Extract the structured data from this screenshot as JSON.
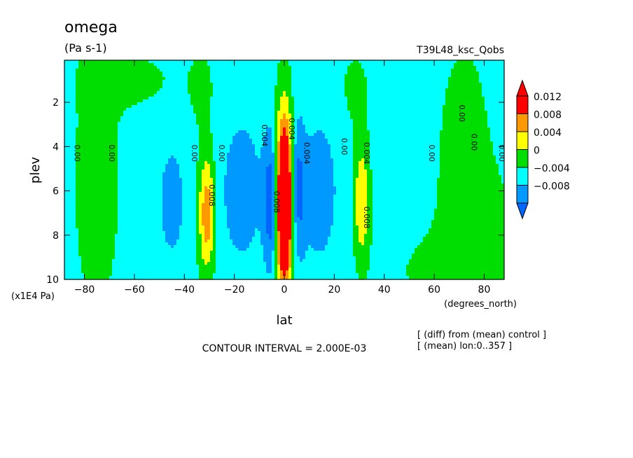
{
  "chart_data": {
    "type": "heatmap",
    "title": "omega",
    "subtitle": "(Pa s-1)",
    "run_label": "T39L48_ksc_Qobs",
    "xlabel": "lat",
    "xunits": "(degrees_north)",
    "ylabel": "plev",
    "yunits": "(x1E4 Pa)",
    "xlim": [
      -88,
      88
    ],
    "ylim": [
      0.1,
      10
    ],
    "y_inverted": true,
    "x_ticks": [
      -80,
      -60,
      -40,
      -20,
      0,
      20,
      40,
      60,
      80
    ],
    "y_ticks": [
      2,
      4,
      6,
      8,
      10
    ],
    "contour_interval_text": "CONTOUR INTERVAL = 2.000E-03",
    "notes": [
      "[ (diff) from (mean) control ]",
      "[ (mean) lon:0..357 ]"
    ],
    "colorbar": {
      "labels": [
        "0.012",
        "0.008",
        "0.004",
        "0",
        "−0.004",
        "−0.008"
      ],
      "colors": [
        "#ff0000",
        "#ff9900",
        "#ffff00",
        "#00dd00",
        "#00ffff",
        "#0099ff"
      ],
      "top_color": "#ff0000",
      "bottom_color": "#0066ff"
    },
    "level_colors": [
      {
        "min": -1.0,
        "max": -0.008,
        "color": "#0066ff"
      },
      {
        "min": -0.008,
        "max": -0.004,
        "color": "#0099ff"
      },
      {
        "min": -0.004,
        "max": 0.0,
        "color": "#00ffff"
      },
      {
        "min": 0.0,
        "max": 0.004,
        "color": "#00dd00"
      },
      {
        "min": 0.004,
        "max": 0.008,
        "color": "#ffff00"
      },
      {
        "min": 0.008,
        "max": 0.012,
        "color": "#ff9900"
      },
      {
        "min": 0.012,
        "max": 1.0,
        "color": "#ff0000"
      }
    ],
    "field_features": [
      {
        "lat": 0,
        "plev": 6.5,
        "amp": 0.03,
        "wlat": 3.5,
        "wp": 3.8
      },
      {
        "lat": -5,
        "plev": 6.5,
        "amp": -0.011,
        "wlat": 3,
        "wp": 3
      },
      {
        "lat": 5,
        "plev": 6.0,
        "amp": -0.009,
        "wlat": 3,
        "wp": 3
      },
      {
        "lat": -31,
        "plev": 7.0,
        "amp": 0.0125,
        "wlat": 3.2,
        "wp": 2.6
      },
      {
        "lat": 31,
        "plev": 6.5,
        "amp": 0.0095,
        "wlat": 3.0,
        "wp": 2.5
      },
      {
        "lat": -17,
        "plev": 6.0,
        "amp": -0.0045,
        "wlat": 10,
        "wp": 4
      },
      {
        "lat": 14,
        "plev": 6.0,
        "amp": -0.0045,
        "wlat": 9,
        "wp": 4
      },
      {
        "lat": -45,
        "plev": 6.5,
        "amp": -0.0045,
        "wlat": 6,
        "wp": 3
      },
      {
        "lat": 47,
        "plev": 6.0,
        "amp": -0.0025,
        "wlat": 8,
        "wp": 3
      },
      {
        "lat": -75,
        "plev": 5.5,
        "amp": 0.002,
        "wlat": 12,
        "wp": 8
      },
      {
        "lat": 72,
        "plev": 5.5,
        "amp": 0.002,
        "wlat": 14,
        "wp": 8
      },
      {
        "lat": -60,
        "plev": 1.0,
        "amp": 0.002,
        "wlat": 18,
        "wp": 1.2
      },
      {
        "lat": -33,
        "plev": 1.5,
        "amp": 0.002,
        "wlat": 6,
        "wp": 2
      },
      {
        "lat": 28,
        "plev": 1.5,
        "amp": 0.002,
        "wlat": 7,
        "wp": 2
      },
      {
        "lat": 80,
        "plev": 8.5,
        "amp": 0.002,
        "wlat": 14,
        "wp": 3
      },
      {
        "lat": 55,
        "plev": 9.3,
        "amp": 0.002,
        "wlat": 15,
        "wp": 1.5
      }
    ],
    "contour_labels": [
      {
        "text": "0.00",
        "lat": -84,
        "plev": 4.3
      },
      {
        "text": "0.00",
        "lat": -70,
        "plev": 4.3
      },
      {
        "text": "0.00",
        "lat": -37,
        "plev": 4.3
      },
      {
        "text": "0.00",
        "lat": -26,
        "plev": 4.3
      },
      {
        "text": "0.004",
        "lat": -9,
        "plev": 3.5
      },
      {
        "text": "0.008",
        "lat": -4,
        "plev": 6.5
      },
      {
        "text": "0.004",
        "lat": 8,
        "plev": 4.3
      },
      {
        "text": "0.004",
        "lat": 2,
        "plev": 3.2
      },
      {
        "text": "0.00",
        "lat": 23,
        "plev": 4.0
      },
      {
        "text": "0.004",
        "lat": 32,
        "plev": 4.3
      },
      {
        "text": "0.008",
        "lat": 32,
        "plev": 7.2
      },
      {
        "text": "0.008",
        "lat": -30,
        "plev": 6.2
      },
      {
        "text": "0.00",
        "lat": 58,
        "plev": 4.3
      },
      {
        "text": "0.00",
        "lat": 70,
        "plev": 2.5
      },
      {
        "text": "0.00",
        "lat": 75,
        "plev": 3.8
      },
      {
        "text": "0.00",
        "lat": 86,
        "plev": 4.3
      }
    ]
  }
}
